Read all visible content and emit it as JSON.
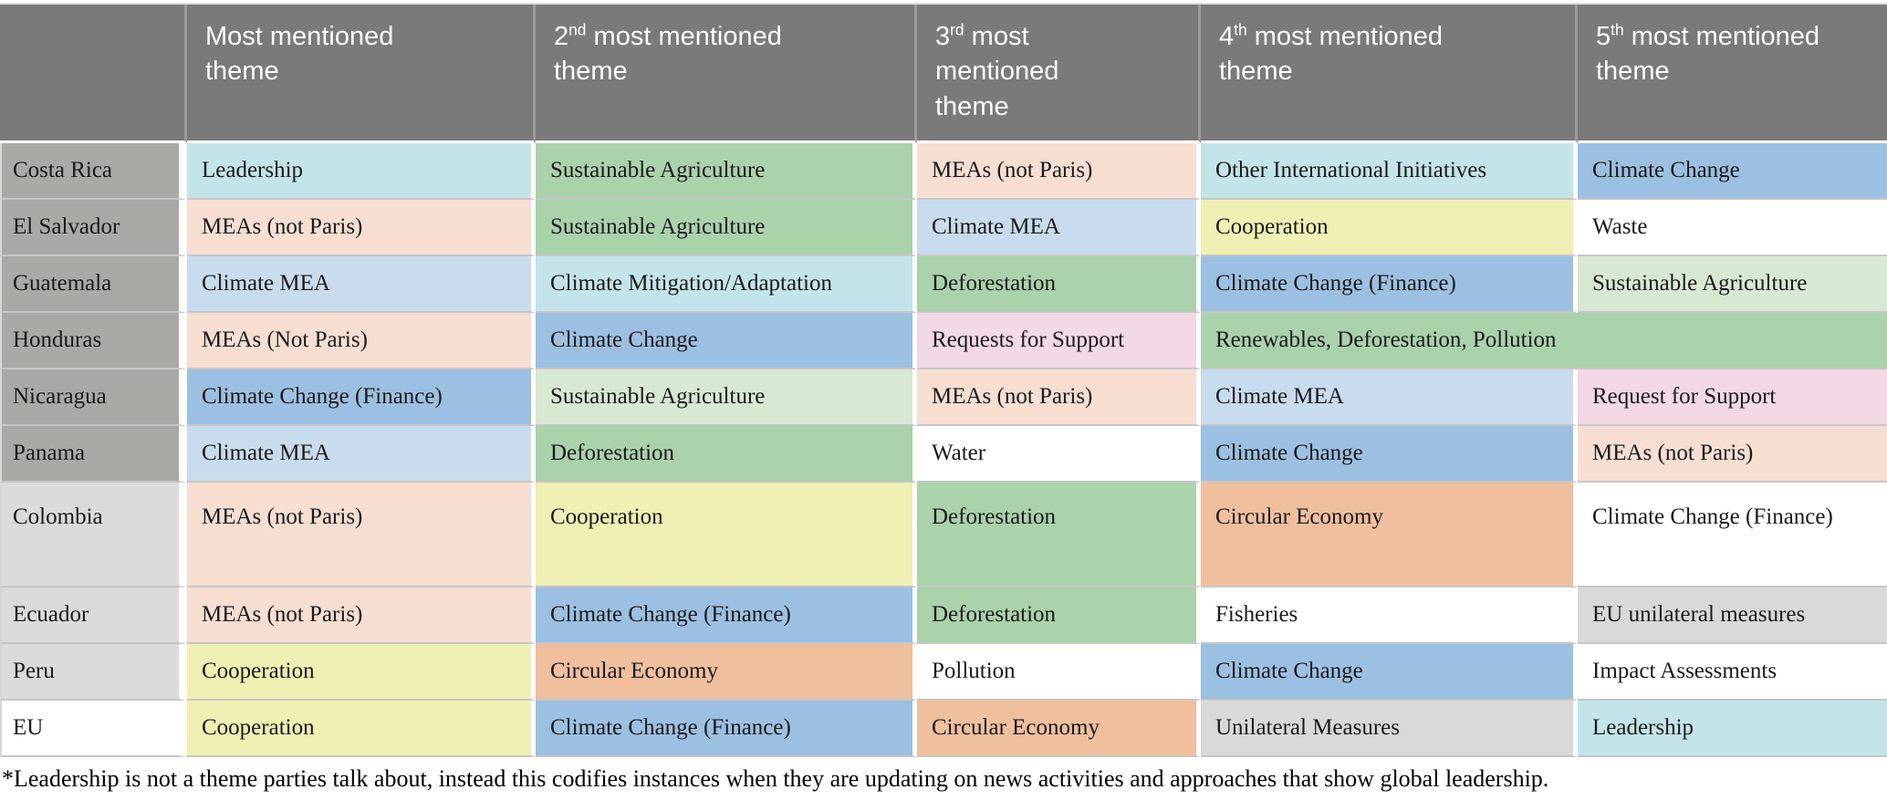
{
  "colors": {
    "header_bg": "#7a7a7a",
    "label_dark": "#aba9a6",
    "label_light": "#dcdbd9",
    "label_white": "#ffffff",
    "cyan": "#c3e5ea",
    "green": "#aad2ab",
    "light_green": "#d8e9d3",
    "peach": "#f6ded1",
    "light_blue": "#c8dcee",
    "blue": "#9cc0e1",
    "yellow": "#eff0b4",
    "pink": "#f3d8e6",
    "salmon": "#f0bf9e",
    "light_gray": "#dad9d7",
    "white": "#ffffff"
  },
  "header": {
    "corner": "",
    "columns": [
      {
        "num": "",
        "sup": "",
        "rest": "Most mentioned theme"
      },
      {
        "num": "2",
        "sup": "nd",
        "rest": " most mentioned theme"
      },
      {
        "num": "3",
        "sup": "rd",
        "rest": " most mentioned theme"
      },
      {
        "num": "4",
        "sup": "th",
        "rest": " most mentioned theme"
      },
      {
        "num": "5",
        "sup": "th",
        "rest": " most mentioned theme"
      }
    ]
  },
  "rows": [
    {
      "country": "Costa Rica",
      "label_color": "label_dark",
      "tall": false,
      "cells": [
        {
          "text": "Leadership",
          "color": "cyan"
        },
        {
          "text": "Sustainable Agriculture",
          "color": "green"
        },
        {
          "text": "MEAs (not Paris)",
          "color": "peach"
        },
        {
          "text": "Other International Initiatives",
          "color": "cyan"
        },
        {
          "text": "Climate Change",
          "color": "blue"
        }
      ]
    },
    {
      "country": "El Salvador",
      "label_color": "label_dark",
      "tall": false,
      "cells": [
        {
          "text": "MEAs (not Paris)",
          "color": "peach"
        },
        {
          "text": "Sustainable Agriculture",
          "color": "green"
        },
        {
          "text": "Climate MEA",
          "color": "light_blue"
        },
        {
          "text": "Cooperation",
          "color": "yellow"
        },
        {
          "text": "Waste",
          "color": "white"
        }
      ]
    },
    {
      "country": "Guatemala",
      "label_color": "label_dark",
      "tall": false,
      "cells": [
        {
          "text": "Climate MEA",
          "color": "light_blue"
        },
        {
          "text": "Climate Mitigation/Adaptation",
          "color": "cyan"
        },
        {
          "text": "Deforestation",
          "color": "green"
        },
        {
          "text": "Climate Change (Finance)",
          "color": "blue"
        },
        {
          "text": "Sustainable Agriculture",
          "color": "light_green"
        }
      ]
    },
    {
      "country": "Honduras",
      "label_color": "label_dark",
      "tall": false,
      "cells": [
        {
          "text": "MEAs (Not Paris)",
          "color": "peach"
        },
        {
          "text": "Climate Change",
          "color": "blue"
        },
        {
          "text": "Requests for Support",
          "color": "pink"
        },
        {
          "text": "Renewables, Deforestation, Pollution",
          "color": "green",
          "colspan": 2
        }
      ]
    },
    {
      "country": "Nicaragua",
      "label_color": "label_dark",
      "tall": false,
      "cells": [
        {
          "text": "Climate Change (Finance)",
          "color": "blue"
        },
        {
          "text": "Sustainable Agriculture",
          "color": "light_green"
        },
        {
          "text": "MEAs (not Paris)",
          "color": "peach"
        },
        {
          "text": "Climate MEA",
          "color": "light_blue"
        },
        {
          "text": "Request for Support",
          "color": "pink"
        }
      ]
    },
    {
      "country": "Panama",
      "label_color": "label_dark",
      "tall": false,
      "cells": [
        {
          "text": "Climate MEA",
          "color": "light_blue"
        },
        {
          "text": "Deforestation",
          "color": "green"
        },
        {
          "text": "Water",
          "color": "white"
        },
        {
          "text": "Climate Change",
          "color": "blue"
        },
        {
          "text": "MEAs (not Paris)",
          "color": "peach"
        }
      ]
    },
    {
      "country": "Colombia",
      "label_color": "label_light",
      "tall": true,
      "cells": [
        {
          "text": "MEAs (not Paris)",
          "color": "peach"
        },
        {
          "text": "Cooperation",
          "color": "yellow"
        },
        {
          "text": "Deforestation",
          "color": "green"
        },
        {
          "text": "Circular Economy",
          "color": "salmon"
        },
        {
          "text": "Climate Change (Finance)",
          "color": "white"
        }
      ]
    },
    {
      "country": "Ecuador",
      "label_color": "label_light",
      "tall": false,
      "cells": [
        {
          "text": "MEAs (not Paris)",
          "color": "peach"
        },
        {
          "text": "Climate Change (Finance)",
          "color": "blue"
        },
        {
          "text": "Deforestation",
          "color": "green"
        },
        {
          "text": "Fisheries",
          "color": "white"
        },
        {
          "text": "EU unilateral measures",
          "color": "light_gray"
        }
      ]
    },
    {
      "country": "Peru",
      "label_color": "label_light",
      "tall": false,
      "cells": [
        {
          "text": "Cooperation",
          "color": "yellow"
        },
        {
          "text": "Circular Economy",
          "color": "salmon"
        },
        {
          "text": "Pollution",
          "color": "white"
        },
        {
          "text": "Climate Change",
          "color": "blue"
        },
        {
          "text": "Impact Assessments",
          "color": "white"
        }
      ]
    },
    {
      "country": "EU",
      "label_color": "label_white",
      "tall": false,
      "cells": [
        {
          "text": "Cooperation",
          "color": "yellow"
        },
        {
          "text": "Climate Change (Finance)",
          "color": "blue"
        },
        {
          "text": "Circular Economy",
          "color": "salmon"
        },
        {
          "text": "Unilateral Measures",
          "color": "light_gray"
        },
        {
          "text": "Leadership",
          "color": "cyan"
        }
      ]
    }
  ],
  "footnote": "*Leadership is not a theme parties talk about, instead this codifies instances when they are updating on news activities and approaches that show global leadership."
}
